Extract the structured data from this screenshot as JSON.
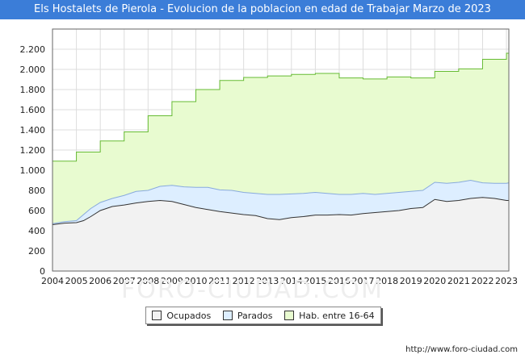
{
  "title": "Els Hostalets de Pierola - Evolucion de la poblacion en edad de Trabajar Marzo de 2023",
  "source": "http://www.foro-ciudad.com",
  "watermark": "FORO-CIUDAD.COM",
  "colors": {
    "title_bg": "#3b7dd8",
    "hab_fill": "#e8fbd0",
    "hab_line": "#66bb33",
    "parados_fill": "#ddeeff",
    "parados_line": "#88aadd",
    "ocupados_fill": "#f2f2f2",
    "ocupados_line": "#333333",
    "grid": "#dddddd"
  },
  "legend": {
    "ocupados": "Ocupados",
    "parados": "Parados",
    "hab": "Hab. entre 16-64"
  },
  "chart_data": {
    "type": "area",
    "title": "Els Hostalets de Pierola - Evolucion de la poblacion en edad de Trabajar Marzo de 2023",
    "xlim": [
      2004,
      2023.1
    ],
    "ylim": [
      0,
      2400
    ],
    "x_ticks": [
      "2004",
      "2005",
      "2006",
      "2007",
      "2008",
      "2009",
      "2010",
      "2011",
      "2012",
      "2013",
      "2014",
      "2015",
      "2016",
      "2017",
      "2018",
      "2019",
      "2020",
      "2021",
      "2022",
      "2023"
    ],
    "y_ticks": [
      {
        "v": 0,
        "label": "0"
      },
      {
        "v": 200,
        "label": "200"
      },
      {
        "v": 400,
        "label": "400"
      },
      {
        "v": 600,
        "label": "600"
      },
      {
        "v": 800,
        "label": "800"
      },
      {
        "v": 1000,
        "label": "1.000"
      },
      {
        "v": 1200,
        "label": "1.200"
      },
      {
        "v": 1400,
        "label": "1.400"
      },
      {
        "v": 1600,
        "label": "1.600"
      },
      {
        "v": 1800,
        "label": "1.800"
      },
      {
        "v": 2000,
        "label": "2.000"
      },
      {
        "v": 2200,
        "label": "2.200"
      }
    ],
    "series": [
      {
        "name": "Hab. entre 16-64",
        "type": "step",
        "x": [
          2004,
          2005,
          2006,
          2007,
          2008,
          2009,
          2010,
          2011,
          2012,
          2013,
          2014,
          2015,
          2016,
          2017,
          2018,
          2019,
          2020,
          2021,
          2022,
          2023,
          2023.1
        ],
        "values": [
          1090,
          1180,
          1290,
          1380,
          1540,
          1680,
          1800,
          1890,
          1920,
          1935,
          1950,
          1960,
          1915,
          1905,
          1925,
          1915,
          1980,
          2005,
          2100,
          2160,
          2160
        ]
      },
      {
        "name": "Parados",
        "type": "area",
        "x": [
          2004,
          2004.5,
          2005,
          2005.3,
          2005.6,
          2006,
          2006.5,
          2007,
          2007.5,
          2008,
          2008.5,
          2009,
          2009.5,
          2010,
          2010.5,
          2011,
          2011.5,
          2012,
          2012.5,
          2013,
          2013.5,
          2014,
          2014.5,
          2015,
          2015.5,
          2016,
          2016.5,
          2017,
          2017.5,
          2018,
          2018.5,
          2019,
          2019.5,
          2020,
          2020.5,
          2021,
          2021.5,
          2022,
          2022.5,
          2023,
          2023.1
        ],
        "values": [
          470,
          490,
          500,
          560,
          620,
          680,
          720,
          750,
          790,
          800,
          840,
          850,
          835,
          830,
          830,
          805,
          800,
          780,
          770,
          760,
          760,
          765,
          770,
          780,
          770,
          760,
          760,
          770,
          760,
          770,
          780,
          790,
          800,
          880,
          870,
          880,
          900,
          875,
          870,
          870,
          875
        ]
      },
      {
        "name": "Ocupados",
        "type": "area",
        "x": [
          2004,
          2004.5,
          2005,
          2005.3,
          2005.6,
          2006,
          2006.5,
          2007,
          2007.5,
          2008,
          2008.5,
          2009,
          2009.5,
          2010,
          2010.5,
          2011,
          2011.5,
          2012,
          2012.5,
          2013,
          2013.5,
          2014,
          2014.5,
          2015,
          2015.5,
          2016,
          2016.5,
          2017,
          2017.5,
          2018,
          2018.5,
          2019,
          2019.5,
          2020,
          2020.5,
          2021,
          2021.5,
          2022,
          2022.5,
          2023,
          2023.1
        ],
        "values": [
          460,
          475,
          480,
          500,
          540,
          600,
          640,
          655,
          675,
          690,
          700,
          690,
          660,
          630,
          610,
          590,
          575,
          560,
          550,
          520,
          510,
          530,
          540,
          555,
          555,
          560,
          555,
          570,
          580,
          590,
          600,
          620,
          630,
          710,
          690,
          700,
          720,
          730,
          720,
          700,
          700
        ]
      }
    ]
  }
}
